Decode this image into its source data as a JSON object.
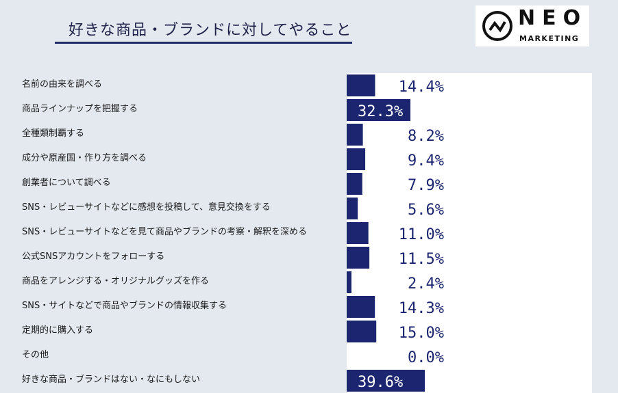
{
  "title": "好きな商品・ブランドに対してやること",
  "logo": {
    "name": "NEO",
    "sub": "MARKETING"
  },
  "colors": {
    "bar": "#1c2670",
    "value_text": "#1c2670",
    "value_text_inside": "#ffffff"
  },
  "chart_data": {
    "type": "bar",
    "orientation": "horizontal",
    "categories": [
      "名前の由来を調べる",
      "商品ラインナップを把握する",
      "全種類制覇する",
      "成分や原産国・作り方を調べる",
      "創業者について調べる",
      "SNS・レビューサイトなどに感想を投稿して、意見交換をする",
      "SNS・レビューサイトなどを見て商品やブランドの考察・解釈を深める",
      "公式SNSアカウントをフォローする",
      "商品をアレンジする・オリジナルグッズを作る",
      "SNS・サイトなどで商品やブランドの情報収集する",
      "定期的に購入する",
      "その他",
      "好きな商品・ブランドはない・なにもしない"
    ],
    "values": [
      14.4,
      32.3,
      8.2,
      9.4,
      7.9,
      5.6,
      11.0,
      11.5,
      2.4,
      14.3,
      15.0,
      0.0,
      39.6
    ],
    "value_labels": [
      "14.4%",
      "32.3%",
      "8.2%",
      "9.4%",
      "7.9%",
      "5.6%",
      "11.0%",
      "11.5%",
      "2.4%",
      "14.3%",
      "15.0%",
      "0.0%",
      "39.6%"
    ],
    "xlim": [
      0,
      100
    ],
    "grid": false,
    "legend": "none"
  }
}
